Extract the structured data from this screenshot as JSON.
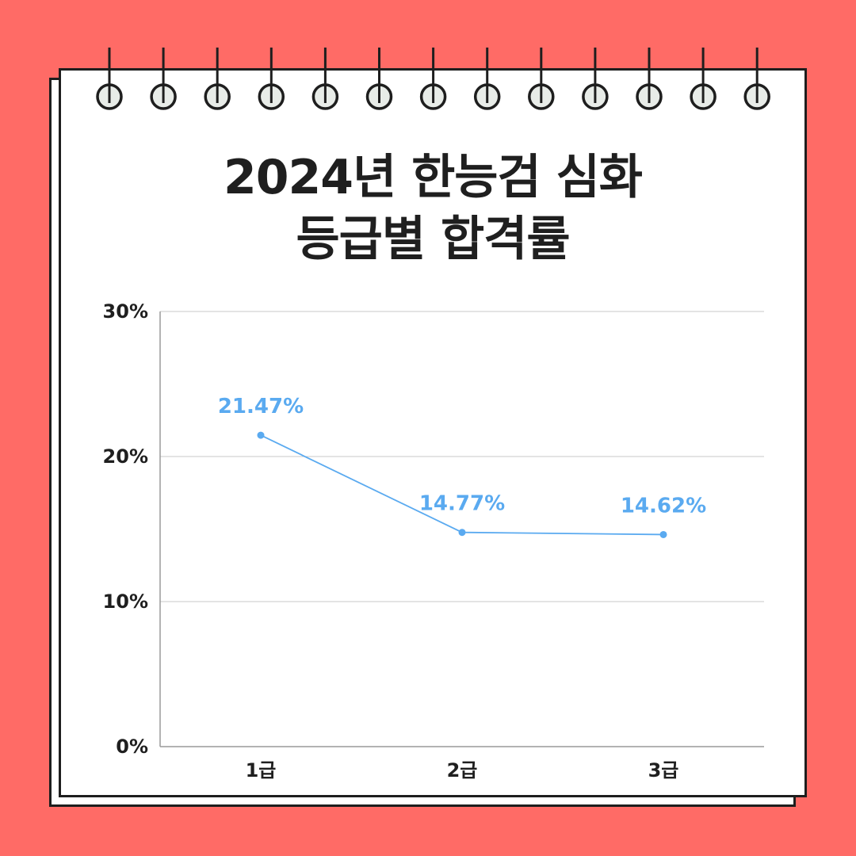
{
  "title": {
    "line1": "2024년 한능검 심화",
    "line2": "등급별 합격률"
  },
  "colors": {
    "background": "#ff6b66",
    "line": "#5aaaf0",
    "label": "#5aaaf0",
    "text": "#1f1f1f"
  },
  "chart_data": {
    "type": "line",
    "categories": [
      "1급",
      "2급",
      "3급"
    ],
    "series": [
      {
        "values": [
          21.47,
          14.77,
          14.62
        ]
      }
    ],
    "data_labels": [
      "21.47%",
      "14.77%",
      "14.62%"
    ],
    "ylim": [
      0,
      30
    ],
    "yticks": [
      0,
      10,
      20,
      30
    ],
    "ytick_labels": [
      "0%",
      "10%",
      "20%",
      "30%"
    ],
    "grid": true
  }
}
